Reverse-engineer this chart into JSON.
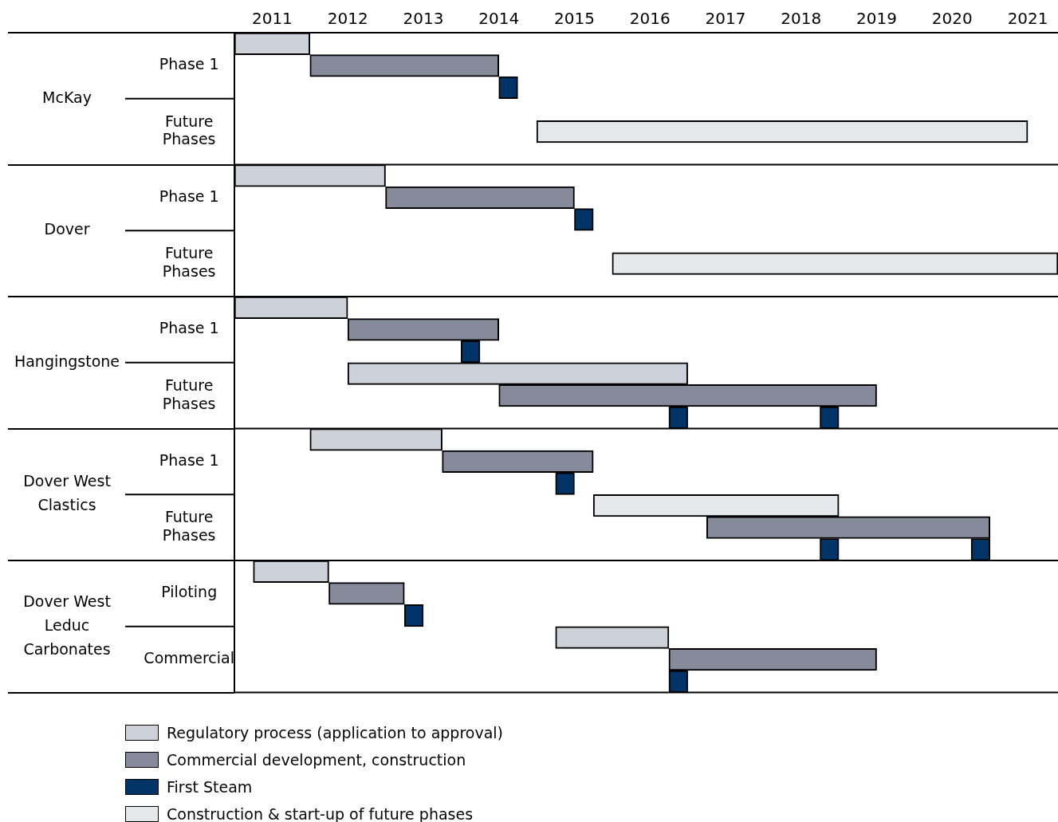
{
  "chart_data": {
    "type": "bar",
    "orientation": "horizontal",
    "legend": "bottom",
    "grid": false,
    "categories": [
      null,
      "Phase 1",
      null,
      null,
      "Future Phases",
      null,
      null,
      "Phase 1",
      null,
      null,
      "Future Phases",
      null,
      null,
      "Phase 1",
      null,
      null,
      "Future Phases",
      null,
      null,
      "Phase 1",
      null,
      null,
      "Future Phases",
      null,
      null,
      "Piloting",
      null,
      null,
      "Commercial",
      null
    ],
    "xlim": [
      2011,
      2021.9
    ],
    "xticks": [
      {
        "value": 2011.5,
        "label": "2011"
      },
      {
        "value": 2012.5,
        "label": "2012"
      },
      {
        "value": 2013.5,
        "label": "2013"
      },
      {
        "value": 2014.5,
        "label": "2014"
      },
      {
        "value": 2015.5,
        "label": "2015"
      },
      {
        "value": 2016.5,
        "label": "2016"
      },
      {
        "value": 2017.5,
        "label": "2017"
      },
      {
        "value": 2018.5,
        "label": "2018"
      },
      {
        "value": 2019.5,
        "label": "2019"
      },
      {
        "value": 2020.5,
        "label": "2020"
      },
      {
        "value": 2021.5,
        "label": "2021"
      }
    ],
    "annotations": [
      "McKay",
      "Dover",
      "Hangingstone",
      "Dover West Clastics",
      "Dover West Leduc Carbonates"
    ],
    "series": [
      {
        "name": "Regulatory process (application to approval)",
        "color": "#cdd1d9",
        "values": [
          1,
          null,
          null,
          null,
          null,
          null,
          2,
          null,
          null,
          null,
          null,
          null,
          1.5,
          null,
          null,
          4.5,
          null,
          null,
          1.75,
          null,
          null,
          null,
          null,
          null,
          1,
          null,
          null,
          1.5,
          null,
          null
        ],
        "base": [
          2011,
          null,
          null,
          null,
          null,
          null,
          2011,
          null,
          null,
          null,
          null,
          null,
          2011,
          null,
          null,
          2012.5,
          null,
          null,
          2012,
          null,
          null,
          null,
          null,
          null,
          2011.25,
          null,
          null,
          2015.25,
          null,
          null
        ]
      },
      {
        "name": "Commercial development, construction",
        "color": "#868b9c",
        "values": [
          null,
          2.5,
          null,
          null,
          null,
          null,
          null,
          2.5,
          null,
          null,
          null,
          null,
          null,
          2,
          null,
          null,
          5,
          null,
          null,
          2,
          null,
          null,
          3.75,
          null,
          null,
          1,
          null,
          null,
          2.75,
          null
        ],
        "base": [
          null,
          2012,
          null,
          null,
          null,
          null,
          null,
          2013,
          null,
          null,
          null,
          null,
          null,
          2012.5,
          null,
          null,
          2014.5,
          null,
          null,
          2013.75,
          null,
          null,
          2017.25,
          null,
          null,
          2012.25,
          null,
          null,
          2016.75,
          null
        ]
      },
      {
        "name": "First Steam",
        "color": "#003366",
        "values": [
          null,
          null,
          0.25,
          null,
          null,
          null,
          null,
          null,
          0.25,
          null,
          null,
          null,
          null,
          null,
          0.25,
          null,
          null,
          0.25,
          null,
          null,
          0.25,
          null,
          null,
          0.25,
          null,
          null,
          0.25,
          null,
          null,
          0.25
        ],
        "base": [
          null,
          null,
          2014.5,
          null,
          null,
          null,
          null,
          null,
          2015.5,
          null,
          null,
          null,
          null,
          null,
          2014,
          null,
          null,
          2016.75,
          null,
          null,
          2015.25,
          null,
          null,
          2018.75,
          null,
          null,
          2013.25,
          null,
          null,
          2016.75
        ]
      },
      {
        "name": "Construction & start-up of future phases",
        "color": "#e6e7eb",
        "values": [
          null,
          null,
          null,
          null,
          6.5,
          null,
          null,
          null,
          null,
          null,
          5.9,
          null,
          null,
          null,
          null,
          null,
          null,
          null,
          null,
          null,
          null,
          3.25,
          null,
          null,
          null,
          null,
          null,
          null,
          null,
          null
        ],
        "base": [
          null,
          null,
          null,
          null,
          2015,
          null,
          null,
          null,
          null,
          null,
          2016,
          null,
          null,
          null,
          null,
          null,
          null,
          null,
          null,
          null,
          null,
          2015.75,
          null,
          null,
          null,
          null,
          null,
          null,
          null,
          null
        ]
      },
      {
        "color": "#003366",
        "values": [
          null,
          null,
          null,
          null,
          null,
          null,
          null,
          null,
          null,
          null,
          null,
          null,
          null,
          null,
          null,
          null,
          null,
          0.25,
          null,
          null,
          null,
          null,
          null,
          0.25,
          null,
          null,
          null,
          null,
          null,
          null
        ],
        "base": [
          null,
          null,
          null,
          null,
          null,
          null,
          null,
          null,
          null,
          null,
          null,
          null,
          null,
          null,
          null,
          null,
          null,
          2018.75,
          null,
          null,
          null,
          null,
          null,
          2020.75,
          null,
          null,
          null,
          null,
          null,
          null
        ]
      }
    ]
  }
}
